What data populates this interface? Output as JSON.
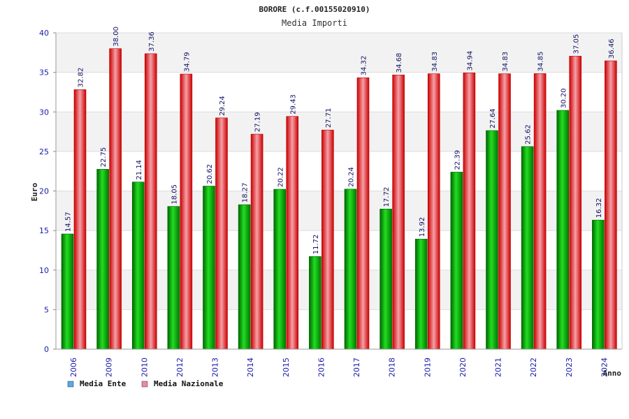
{
  "colors": {
    "ente": "#00aa00",
    "nazionale": "#dd1111",
    "legend_ente": "#55aaee",
    "legend_nazionale": "#ee88aa",
    "band": "#f2f2f2",
    "tick_text": "#1a1aa6"
  },
  "chart_data": {
    "type": "bar",
    "title": "BORORE (c.f.00155020910)",
    "subtitle": "Media Importi",
    "xlabel": "Anno",
    "ylabel": "Euro",
    "ylim": [
      0,
      40
    ],
    "yticks": [
      0,
      5,
      10,
      15,
      20,
      25,
      30,
      35,
      40
    ],
    "grid": true,
    "legend_position": "bottom-left",
    "categories": [
      "2006",
      "2009",
      "2010",
      "2012",
      "2013",
      "2014",
      "2015",
      "2016",
      "2017",
      "2018",
      "2019",
      "2020",
      "2021",
      "2022",
      "2023",
      "2024"
    ],
    "series": [
      {
        "name": "Media Ente",
        "values": [
          14.57,
          22.75,
          21.14,
          18.05,
          20.62,
          18.27,
          20.22,
          11.72,
          20.24,
          17.72,
          13.92,
          22.39,
          27.64,
          25.62,
          30.2,
          16.32
        ],
        "labels": [
          "14.57",
          "22.75",
          "21.14",
          "18.05",
          "20.62",
          "18.27",
          "20.22",
          "11.72",
          "20.24",
          "17.72",
          "13.92",
          "22.39",
          "27.64",
          "25.62",
          "30.20",
          "16.32"
        ]
      },
      {
        "name": "Media Nazionale",
        "values": [
          32.82,
          38.0,
          37.36,
          34.79,
          29.24,
          27.19,
          29.43,
          27.71,
          34.32,
          34.68,
          34.83,
          34.94,
          34.83,
          34.85,
          37.05,
          36.46
        ],
        "labels": [
          "32.82",
          "38.00",
          "37.36",
          "34.79",
          "29.24",
          "27.19",
          "29.43",
          "27.71",
          "34.32",
          "34.68",
          "34.83",
          "34.94",
          "34.83",
          "34.85",
          "37.05",
          "36.46"
        ]
      }
    ]
  }
}
